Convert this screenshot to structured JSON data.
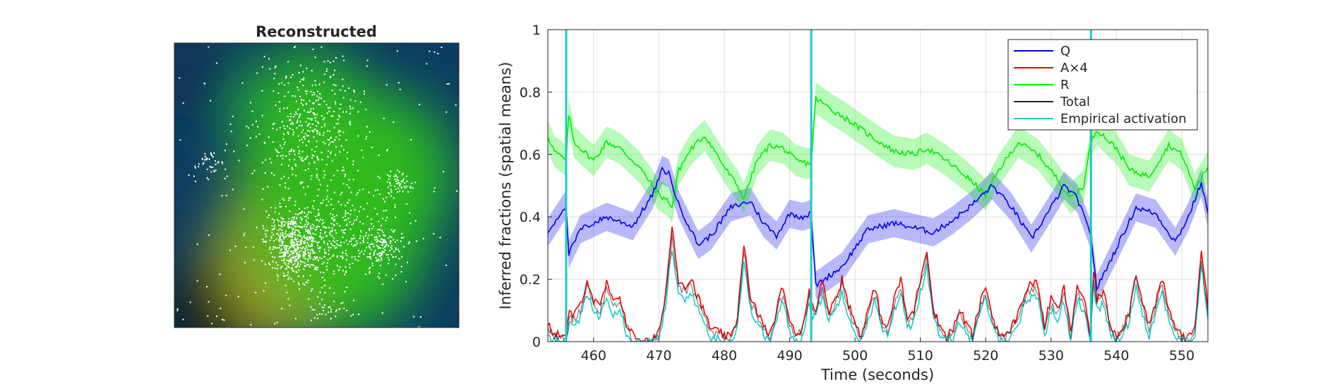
{
  "colors": {
    "Q": "#0000ee",
    "A": "#ee0000",
    "R": "#00ee00",
    "Total": "#222222",
    "Empirical": "#1ec8c8",
    "grid": "#dfdfdf"
  },
  "chart_data": [
    {
      "type": "heatmap",
      "title": "Reconstructed",
      "description_colormap": "blue-green-yellow with white point markers",
      "hotspots": [
        {
          "x": 0.42,
          "y": 0.72,
          "weight": 1.0,
          "tint": "yellow"
        },
        {
          "x": 0.47,
          "y": 0.32,
          "weight": 0.8,
          "tint": "green"
        },
        {
          "x": 0.62,
          "y": 0.7,
          "weight": 0.9,
          "tint": "green"
        },
        {
          "x": 0.75,
          "y": 0.46,
          "weight": 0.6,
          "tint": "green"
        }
      ]
    },
    {
      "type": "line",
      "xlabel": "Time (seconds)",
      "ylabel": "Inferred fractions (spatial means)",
      "xlim": [
        453,
        554
      ],
      "ylim": [
        0,
        1
      ],
      "xticks": [
        460,
        470,
        480,
        490,
        500,
        510,
        520,
        530,
        540,
        550
      ],
      "yticks": [
        0,
        0.2,
        0.4,
        0.6,
        0.8,
        1
      ],
      "ytick_labels": [
        "0",
        "0.2",
        "0.4",
        "0.6",
        "0.8",
        "1"
      ],
      "grid": true,
      "legend_position": "top-right",
      "legend": [
        "Q",
        "A×4",
        "R",
        "Total",
        "Empirical activation"
      ],
      "spike_times": [
        455.8,
        493.3,
        536.1
      ],
      "series": [
        {
          "name": "Q",
          "band": 0.045,
          "x": [
            453,
            455.8,
            456.2,
            458,
            462,
            466,
            469,
            470.5,
            471.5,
            473,
            476,
            478,
            481,
            484,
            486,
            488,
            490,
            492,
            493.3,
            494,
            498,
            502,
            506,
            508,
            510,
            512,
            515,
            518,
            520,
            521,
            524,
            527,
            530,
            532,
            534,
            536.1,
            537,
            540,
            543,
            546,
            549,
            551,
            553,
            554
          ],
          "y": [
            0.35,
            0.44,
            0.28,
            0.36,
            0.4,
            0.37,
            0.47,
            0.55,
            0.54,
            0.44,
            0.31,
            0.34,
            0.43,
            0.45,
            0.38,
            0.34,
            0.41,
            0.4,
            0.41,
            0.18,
            0.24,
            0.36,
            0.38,
            0.37,
            0.36,
            0.35,
            0.39,
            0.44,
            0.48,
            0.5,
            0.43,
            0.33,
            0.43,
            0.5,
            0.46,
            0.34,
            0.17,
            0.3,
            0.43,
            0.41,
            0.32,
            0.4,
            0.51,
            0.41
          ]
        },
        {
          "name": "A×4",
          "x": [
            453,
            454,
            455,
            455.8,
            456.3,
            457,
            458,
            459,
            460,
            461,
            462,
            463,
            464,
            465,
            466,
            467,
            468,
            469,
            470,
            471,
            472,
            473,
            474,
            475,
            476,
            477,
            478,
            479,
            480,
            481,
            482,
            483,
            484,
            485,
            486,
            487,
            488,
            489,
            490,
            491,
            492,
            493,
            493.3,
            494,
            495,
            496,
            497,
            498,
            499,
            500,
            501,
            502,
            503,
            504,
            505,
            506,
            507,
            508,
            509,
            510,
            511,
            512,
            513,
            514,
            515,
            516,
            517,
            518,
            519,
            520,
            521,
            522,
            523,
            524,
            525,
            526,
            527,
            528,
            529,
            530,
            531,
            532,
            533,
            534,
            535,
            536,
            536.5,
            537,
            538,
            539,
            540,
            541,
            542,
            543,
            544,
            545,
            546,
            547,
            548,
            549,
            550,
            551,
            552,
            553,
            554
          ],
          "y": [
            0.05,
            0.03,
            0.02,
            0.01,
            0.1,
            0.08,
            0.12,
            0.2,
            0.13,
            0.11,
            0.19,
            0.12,
            0.15,
            0.06,
            0.02,
            0.01,
            0.0,
            0.0,
            0.03,
            0.15,
            0.37,
            0.2,
            0.18,
            0.2,
            0.14,
            0.09,
            0.04,
            0.03,
            0.02,
            0.01,
            0.08,
            0.32,
            0.13,
            0.1,
            0.05,
            0.02,
            0.1,
            0.18,
            0.06,
            0.02,
            0.05,
            0.17,
            0.12,
            0.11,
            0.19,
            0.1,
            0.14,
            0.2,
            0.12,
            0.06,
            0.02,
            0.1,
            0.17,
            0.08,
            0.04,
            0.14,
            0.2,
            0.07,
            0.1,
            0.2,
            0.3,
            0.1,
            0.05,
            0.02,
            0.04,
            0.1,
            0.06,
            0.02,
            0.11,
            0.18,
            0.08,
            0.03,
            0.01,
            0.05,
            0.09,
            0.16,
            0.19,
            0.18,
            0.05,
            0.14,
            0.1,
            0.17,
            0.03,
            0.18,
            0.14,
            0.02,
            0.23,
            0.14,
            0.16,
            0.06,
            0.02,
            0.05,
            0.1,
            0.22,
            0.13,
            0.05,
            0.12,
            0.2,
            0.1,
            0.05,
            0.02,
            0.01,
            0.05,
            0.3,
            0.1
          ]
        },
        {
          "name": "R",
          "band": 0.05,
          "x": [
            453,
            454,
            455.8,
            456.2,
            457,
            460,
            462,
            464,
            467,
            470,
            471.5,
            472,
            473,
            475,
            477,
            478,
            480,
            482,
            483,
            485,
            487,
            489,
            491,
            493,
            493.3,
            494,
            496,
            499,
            503,
            506,
            509,
            511,
            514,
            517,
            519,
            520,
            522,
            525,
            528,
            531,
            533,
            535,
            536.1,
            537,
            540,
            542,
            545,
            548,
            550,
            552,
            554
          ],
          "y": [
            0.66,
            0.61,
            0.58,
            0.73,
            0.64,
            0.58,
            0.64,
            0.62,
            0.56,
            0.47,
            0.45,
            0.43,
            0.55,
            0.62,
            0.66,
            0.63,
            0.56,
            0.5,
            0.46,
            0.58,
            0.63,
            0.62,
            0.58,
            0.57,
            0.58,
            0.78,
            0.75,
            0.71,
            0.65,
            0.61,
            0.6,
            0.62,
            0.58,
            0.53,
            0.49,
            0.47,
            0.55,
            0.64,
            0.6,
            0.52,
            0.46,
            0.5,
            0.64,
            0.68,
            0.62,
            0.55,
            0.53,
            0.63,
            0.6,
            0.49,
            0.56
          ]
        },
        {
          "name": "Total",
          "x": [
            453,
            454,
            455,
            455.8,
            456.3,
            457,
            458,
            459,
            460,
            461,
            462,
            463,
            464,
            465,
            466,
            467,
            468,
            469,
            470,
            471,
            472,
            473,
            474,
            475,
            476,
            477,
            478,
            479,
            480,
            481,
            482,
            483,
            484,
            485,
            486,
            487,
            488,
            489,
            490,
            491,
            492,
            493,
            493.3,
            494,
            495,
            496,
            497,
            498,
            499,
            500,
            501,
            502,
            503,
            504,
            505,
            506,
            507,
            508,
            509,
            510,
            511,
            512,
            513,
            514,
            515,
            516,
            517,
            518,
            519,
            520,
            521,
            522,
            523,
            524,
            525,
            526,
            527,
            528,
            529,
            530,
            531,
            532,
            533,
            534,
            535,
            536,
            536.5,
            537,
            538,
            539,
            540,
            541,
            542,
            543,
            544,
            545,
            546,
            547,
            548,
            549,
            550,
            551,
            552,
            553,
            554
          ],
          "y": [
            0.04,
            0.02,
            0.01,
            0.0,
            0.08,
            0.07,
            0.1,
            0.18,
            0.12,
            0.1,
            0.17,
            0.11,
            0.13,
            0.05,
            0.01,
            0.0,
            0.0,
            0.0,
            0.02,
            0.13,
            0.33,
            0.18,
            0.16,
            0.18,
            0.12,
            0.08,
            0.03,
            0.02,
            0.01,
            0.01,
            0.07,
            0.29,
            0.12,
            0.09,
            0.04,
            0.01,
            0.09,
            0.16,
            0.05,
            0.01,
            0.04,
            0.15,
            0.11,
            0.1,
            0.17,
            0.09,
            0.12,
            0.18,
            0.11,
            0.05,
            0.01,
            0.09,
            0.15,
            0.07,
            0.03,
            0.12,
            0.18,
            0.06,
            0.09,
            0.18,
            0.27,
            0.09,
            0.04,
            0.01,
            0.03,
            0.09,
            0.05,
            0.01,
            0.1,
            0.16,
            0.07,
            0.02,
            0.01,
            0.04,
            0.08,
            0.14,
            0.17,
            0.16,
            0.04,
            0.12,
            0.09,
            0.15,
            0.02,
            0.16,
            0.12,
            0.01,
            0.21,
            0.12,
            0.14,
            0.05,
            0.01,
            0.04,
            0.09,
            0.2,
            0.11,
            0.04,
            0.11,
            0.18,
            0.09,
            0.04,
            0.01,
            0.0,
            0.04,
            0.27,
            0.09
          ]
        },
        {
          "name": "Empirical activation",
          "x": [
            453,
            454,
            455,
            455.8,
            456.3,
            457,
            458,
            459,
            460,
            461,
            462,
            463,
            464,
            465,
            466,
            467,
            468,
            469,
            470,
            471,
            472,
            473,
            474,
            475,
            476,
            477,
            478,
            479,
            480,
            481,
            482,
            483,
            484,
            485,
            486,
            487,
            488,
            489,
            490,
            491,
            492,
            493,
            493.3,
            494,
            495,
            496,
            497,
            498,
            499,
            500,
            501,
            502,
            503,
            504,
            505,
            506,
            507,
            508,
            509,
            510,
            511,
            512,
            513,
            514,
            515,
            516,
            517,
            518,
            519,
            520,
            521,
            522,
            523,
            524,
            525,
            526,
            527,
            528,
            529,
            530,
            531,
            532,
            533,
            534,
            535,
            536,
            536.5,
            537,
            538,
            539,
            540,
            541,
            542,
            543,
            544,
            545,
            546,
            547,
            548,
            549,
            550,
            551,
            552,
            553,
            554
          ],
          "y": [
            0.02,
            0.01,
            0.0,
            0.0,
            0.06,
            0.05,
            0.08,
            0.15,
            0.1,
            0.08,
            0.15,
            0.09,
            0.11,
            0.03,
            0.0,
            0.0,
            0.0,
            0.0,
            0.01,
            0.11,
            0.3,
            0.15,
            0.13,
            0.16,
            0.1,
            0.06,
            0.01,
            0.01,
            0.0,
            0.0,
            0.05,
            0.26,
            0.1,
            0.07,
            0.02,
            0.0,
            0.07,
            0.13,
            0.03,
            0.0,
            0.02,
            0.13,
            0.09,
            0.08,
            0.15,
            0.07,
            0.1,
            0.16,
            0.09,
            0.03,
            0.0,
            0.07,
            0.13,
            0.05,
            0.01,
            0.1,
            0.16,
            0.04,
            0.07,
            0.16,
            0.24,
            0.07,
            0.02,
            0.0,
            0.01,
            0.07,
            0.03,
            0.0,
            0.08,
            0.14,
            0.05,
            0.01,
            0.0,
            0.02,
            0.06,
            0.12,
            0.15,
            0.14,
            0.02,
            0.1,
            0.07,
            0.13,
            0.01,
            0.14,
            0.1,
            0.0,
            0.19,
            0.1,
            0.12,
            0.03,
            0.0,
            0.02,
            0.07,
            0.18,
            0.09,
            0.02,
            0.09,
            0.16,
            0.07,
            0.02,
            0.0,
            0.0,
            0.02,
            0.25,
            0.07
          ]
        }
      ]
    }
  ]
}
